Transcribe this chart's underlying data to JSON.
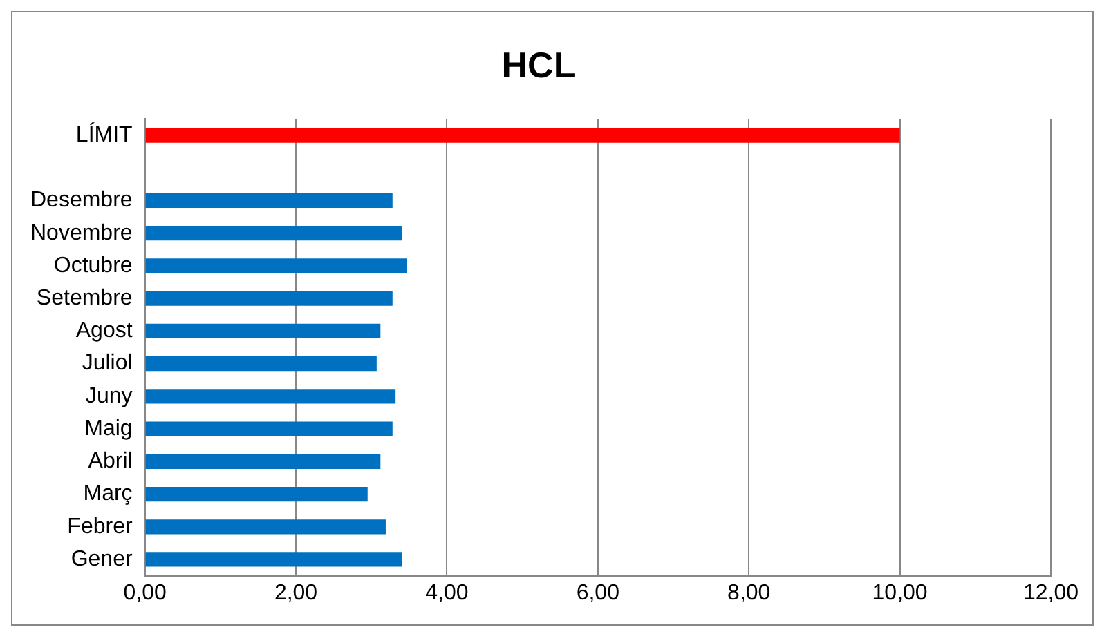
{
  "chart_data": {
    "type": "bar",
    "orientation": "horizontal",
    "title": "HCL",
    "categories": [
      "LÍMIT",
      null,
      "Desembre",
      "Novembre",
      "Octubre",
      "Setembre",
      "Agost",
      "Juliol",
      "Juny",
      "Maig",
      "Abril",
      "Març",
      "Febrer",
      "Gener"
    ],
    "values": [
      10,
      null,
      3.28,
      3.41,
      3.47,
      3.28,
      3.12,
      3.07,
      3.32,
      3.28,
      3.12,
      2.95,
      3.19,
      3.41
    ],
    "colors": [
      "#ff0000",
      null,
      "#0070c0",
      "#0070c0",
      "#0070c0",
      "#0070c0",
      "#0070c0",
      "#0070c0",
      "#0070c0",
      "#0070c0",
      "#0070c0",
      "#0070c0",
      "#0070c0",
      "#0070c0"
    ],
    "xlim": [
      0,
      12
    ],
    "xticks": [
      {
        "value": 0,
        "label": "0,00"
      },
      {
        "value": 2,
        "label": "2,00"
      },
      {
        "value": 4,
        "label": "4,00"
      },
      {
        "value": 6,
        "label": "6,00"
      },
      {
        "value": 8,
        "label": "8,00"
      },
      {
        "value": 10,
        "label": "10,00"
      },
      {
        "value": 12,
        "label": "12,00"
      }
    ],
    "grid": "x",
    "legend": false
  }
}
